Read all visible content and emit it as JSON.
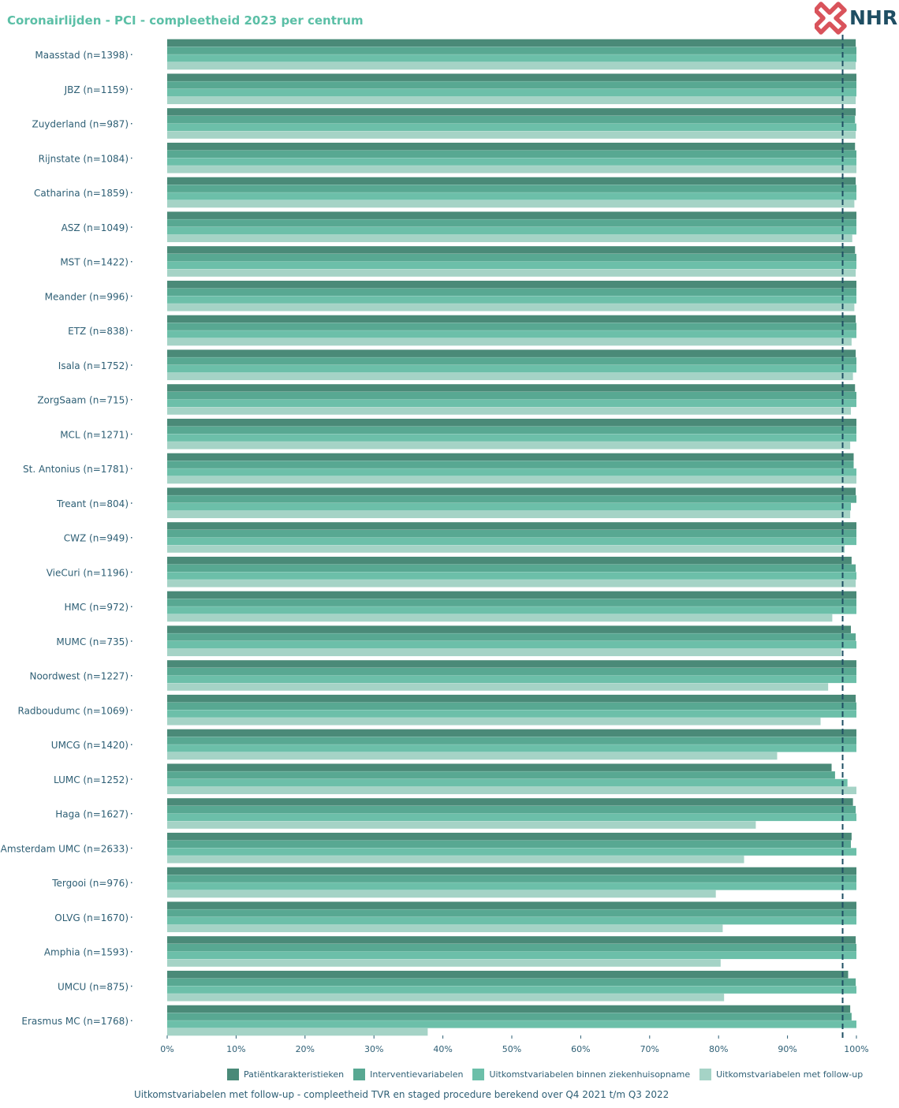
{
  "title": "Coronairlijden - PCI - compleetheid 2023 per centrum",
  "logo_text": "NHR",
  "caption": "Uitkomstvariabelen met follow-up - compleetheid TVR en staged procedure berekend over Q4 2021 t/m Q3 2022",
  "colors": {
    "series": [
      "#4a8a78",
      "#58a892",
      "#6cbfa9",
      "#a5d3c6"
    ],
    "label_text": "#2e5f75",
    "reference_line": "#1f4e63",
    "logo_red": "#d9535b",
    "logo_text": "#1f4e63"
  },
  "legend": [
    "Patiëntkarakteristieken",
    "Interventievariabelen",
    "Uitkomstvariabelen binnen ziekenhuisopname",
    "Uitkomstvariabelen met follow-up"
  ],
  "chart_data": {
    "type": "bar",
    "orientation": "horizontal",
    "title": "Coronairlijden - PCI - compleetheid 2023 per centrum",
    "xlim": [
      0,
      100
    ],
    "x_ticks": [
      "0%",
      "10%",
      "20%",
      "30%",
      "40%",
      "50%",
      "60%",
      "70%",
      "80%",
      "90%",
      "100%"
    ],
    "reference_line": 98,
    "reference_line_style": "dashed",
    "categories": [
      "Maasstad (n=1398)",
      "JBZ (n=1159)",
      "Zuyderland (n=987)",
      "Rijnstate (n=1084)",
      "Catharina (n=1859)",
      "ASZ (n=1049)",
      "MST (n=1422)",
      "Meander (n=996)",
      "ETZ (n=838)",
      "Isala (n=1752)",
      "ZorgSaam (n=715)",
      "MCL (n=1271)",
      "St. Antonius (n=1781)",
      "Treant (n=804)",
      "CWZ (n=949)",
      "VieCuri (n=1196)",
      "HMC (n=972)",
      "MUMC (n=735)",
      "Noordwest (n=1227)",
      "Radboudumc (n=1069)",
      "UMCG (n=1420)",
      "LUMC (n=1252)",
      "Haga (n=1627)",
      "Amsterdam UMC (n=2633)",
      "Tergooi (n=976)",
      "OLVG (n=1670)",
      "Amphia (n=1593)",
      "UMCU (n=875)",
      "Erasmus MC (n=1768)"
    ],
    "series": [
      {
        "name": "Patiëntkarakteristieken",
        "values": [
          99.9,
          100,
          99.9,
          99.8,
          99.9,
          100,
          99.8,
          100,
          99.9,
          99.9,
          99.8,
          100,
          99.6,
          99.9,
          100,
          99.3,
          100,
          99.2,
          100,
          99.9,
          100,
          96.4,
          99.5,
          99.3,
          100,
          100,
          99.9,
          98.8,
          99.1
        ]
      },
      {
        "name": "Interventievariabelen",
        "values": [
          100,
          100,
          99.8,
          100,
          100,
          100,
          100,
          100,
          100,
          100,
          100,
          100,
          99.6,
          100,
          100,
          99.9,
          100,
          99.9,
          100,
          100,
          100,
          96.9,
          99.9,
          99.2,
          100,
          100,
          100,
          99.9,
          99.3
        ]
      },
      {
        "name": "Uitkomstvariabelen binnen ziekenhuisopname",
        "values": [
          100,
          100,
          100,
          100,
          100,
          100,
          100,
          100,
          100,
          100,
          100,
          100,
          100,
          99.2,
          100,
          100,
          100,
          100,
          100,
          100,
          100,
          98.7,
          100,
          100,
          100,
          100,
          100,
          100,
          100
        ]
      },
      {
        "name": "Uitkomstvariabelen met follow-up",
        "values": [
          99.9,
          99.9,
          99.9,
          100,
          99.7,
          99.4,
          99.9,
          99.7,
          99.3,
          99.5,
          99.2,
          99.1,
          100,
          99.1,
          98.3,
          99.9,
          96.5,
          97.8,
          95.9,
          94.8,
          88.5,
          100,
          85.4,
          83.7,
          79.6,
          80.6,
          80.3,
          80.8,
          37.8
        ]
      }
    ]
  }
}
